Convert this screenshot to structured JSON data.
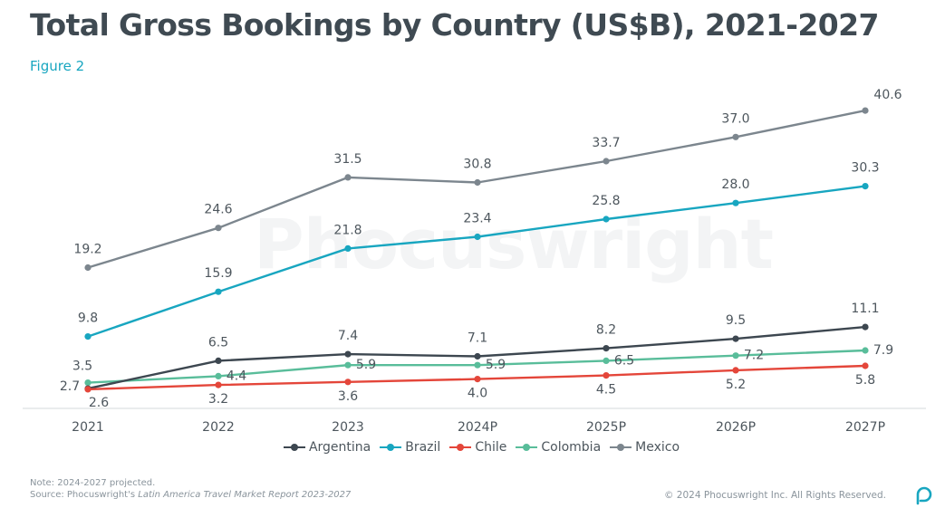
{
  "header": {
    "title": "Total Gross Bookings by Country (US$B), 2021-2027",
    "subtitle": "Figure 2"
  },
  "watermark": "Phocuswright",
  "footer": {
    "note_line1": "Note: 2024-2027 projected.",
    "source_prefix": "Source: Phocuswright's ",
    "source_title": "Latin America Travel Market Report 2023-2027",
    "copyright": "© 2024 Phocuswright Inc. All Rights Reserved."
  },
  "chart_data": {
    "type": "line",
    "title": "Total Gross Bookings by Country (US$B), 2021-2027",
    "xlabel": "",
    "ylabel": "",
    "ylim": [
      0,
      42
    ],
    "grid": false,
    "legend_position": "bottom",
    "categories": [
      "2021",
      "2022",
      "2023",
      "2024P",
      "2025P",
      "2026P",
      "2027P"
    ],
    "series": [
      {
        "name": "Argentina",
        "color": "#3d4750",
        "values": [
          2.7,
          6.5,
          7.4,
          7.1,
          8.2,
          9.5,
          11.1
        ]
      },
      {
        "name": "Brazil",
        "color": "#18a6c0",
        "values": [
          9.8,
          15.9,
          21.8,
          23.4,
          25.8,
          28.0,
          30.3
        ]
      },
      {
        "name": "Chile",
        "color": "#e4463a",
        "values": [
          2.6,
          3.2,
          3.6,
          4.0,
          4.5,
          5.2,
          5.8
        ]
      },
      {
        "name": "Colombia",
        "color": "#59bd9a",
        "values": [
          3.5,
          4.4,
          5.9,
          5.9,
          6.5,
          7.2,
          7.9
        ]
      },
      {
        "name": "Mexico",
        "color": "#7c868e",
        "values": [
          19.2,
          24.6,
          31.5,
          30.8,
          33.7,
          37.0,
          40.6
        ]
      }
    ],
    "data_labels": {
      "Argentina": [
        "2.7",
        "6.5",
        "7.4",
        "7.1",
        "8.2",
        "9.5",
        "11.1"
      ],
      "Brazil": [
        "9.8",
        "15.9",
        "21.8",
        "23.4",
        "25.8",
        "28.0",
        "30.3"
      ],
      "Chile": [
        "2.6",
        "3.2",
        "3.6",
        "4.0",
        "4.5",
        "5.2",
        "5.8"
      ],
      "Colombia": [
        "3.5",
        "4.4",
        "5.9",
        "5.9",
        "6.5",
        "7.2",
        "7.9"
      ],
      "Mexico": [
        "19.2",
        "24.6",
        "31.5",
        "30.8",
        "33.7",
        "37.0",
        "40.6"
      ]
    }
  }
}
